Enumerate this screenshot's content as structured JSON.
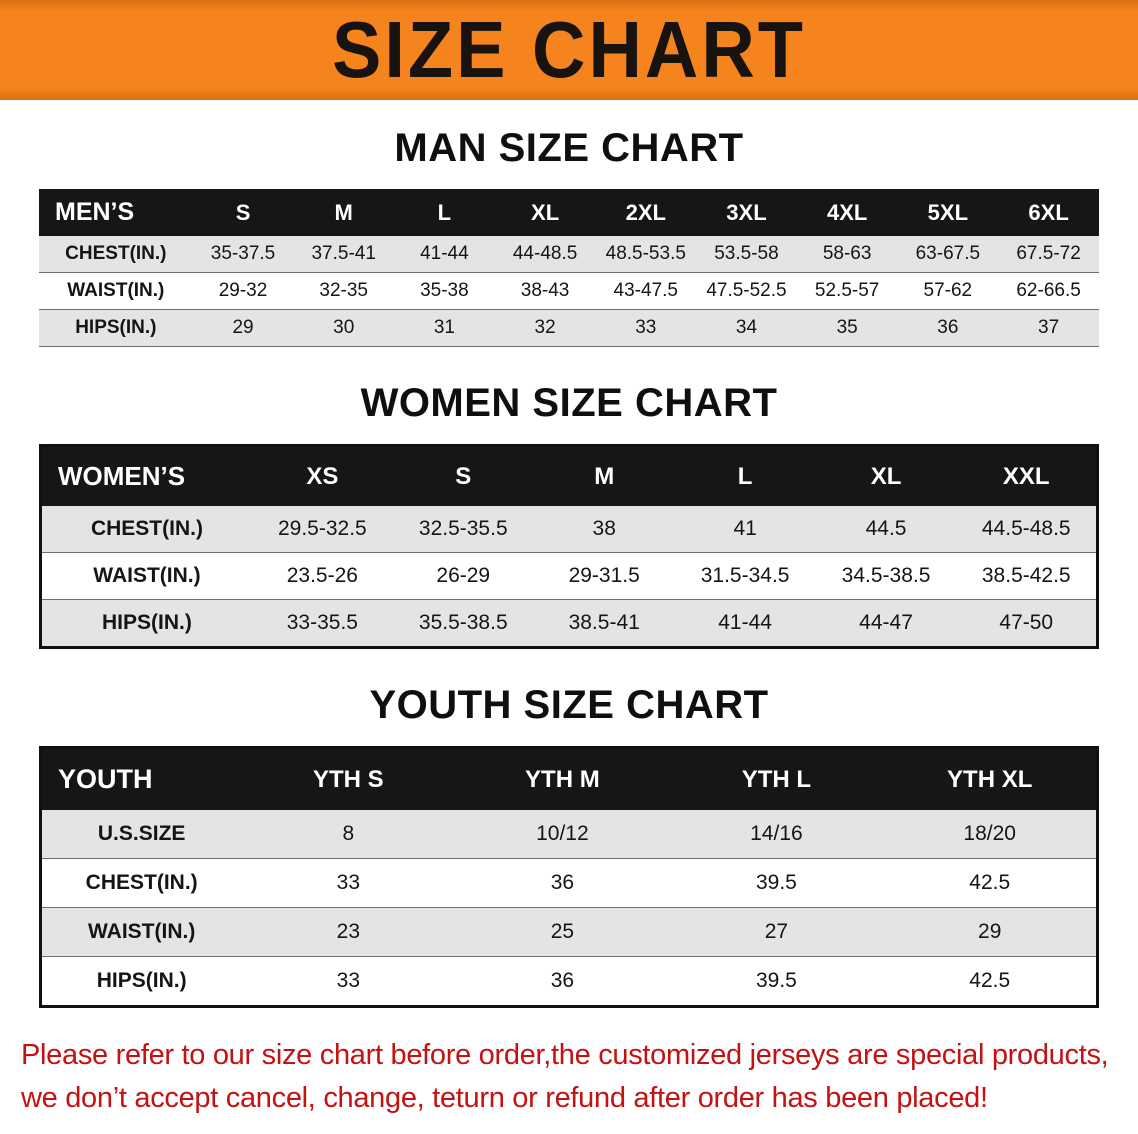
{
  "banner": {
    "title": "SIZE CHART"
  },
  "colors": {
    "banner_orange": "#f5841f",
    "table_header_black": "#161616",
    "row_alt_gray": "#e4e4e4",
    "note_red": "#c41111"
  },
  "sections": {
    "men": {
      "heading": "MAN SIZE CHART",
      "table": {
        "header_label": "MEN’S",
        "columns": [
          "S",
          "M",
          "L",
          "XL",
          "2XL",
          "3XL",
          "4XL",
          "5XL",
          "6XL"
        ],
        "rows": [
          {
            "label": "CHEST(IN.)",
            "values": [
              "35-37.5",
              "37.5-41",
              "41-44",
              "44-48.5",
              "48.5-53.5",
              "53.5-58",
              "58-63",
              "63-67.5",
              "67.5-72"
            ]
          },
          {
            "label": "WAIST(IN.)",
            "values": [
              "29-32",
              "32-35",
              "35-38",
              "38-43",
              "43-47.5",
              "47.5-52.5",
              "52.5-57",
              "57-62",
              "62-66.5"
            ]
          },
          {
            "label": "HIPS(IN.)",
            "values": [
              "29",
              "30",
              "31",
              "32",
              "33",
              "34",
              "35",
              "36",
              "37"
            ]
          }
        ]
      }
    },
    "women": {
      "heading": "WOMEN SIZE CHART",
      "table": {
        "header_label": "WOMEN’S",
        "columns": [
          "XS",
          "S",
          "M",
          "L",
          "XL",
          "XXL"
        ],
        "rows": [
          {
            "label": "CHEST(IN.)",
            "values": [
              "29.5-32.5",
              "32.5-35.5",
              "38",
              "41",
              "44.5",
              "44.5-48.5"
            ]
          },
          {
            "label": "WAIST(IN.)",
            "values": [
              "23.5-26",
              "26-29",
              "29-31.5",
              "31.5-34.5",
              "34.5-38.5",
              "38.5-42.5"
            ]
          },
          {
            "label": "HIPS(IN.)",
            "values": [
              "33-35.5",
              "35.5-38.5",
              "38.5-41",
              "41-44",
              "44-47",
              "47-50"
            ]
          }
        ]
      }
    },
    "youth": {
      "heading": "YOUTH SIZE CHART",
      "table": {
        "header_label": "YOUTH",
        "columns": [
          "YTH S",
          "YTH M",
          "YTH L",
          "YTH XL"
        ],
        "rows": [
          {
            "label": "U.S.SIZE",
            "values": [
              "8",
              "10/12",
              "14/16",
              "18/20"
            ]
          },
          {
            "label": "CHEST(IN.)",
            "values": [
              "33",
              "36",
              "39.5",
              "42.5"
            ]
          },
          {
            "label": "WAIST(IN.)",
            "values": [
              "23",
              "25",
              "27",
              "29"
            ]
          },
          {
            "label": "HIPS(IN.)",
            "values": [
              "33",
              "36",
              "39.5",
              "42.5"
            ]
          }
        ]
      }
    }
  },
  "note": {
    "line1": "Please refer to our size chart before order,the customized jerseys are special products,",
    "line2": "we don’t accept cancel, change, teturn or refund after order has been placed!"
  }
}
